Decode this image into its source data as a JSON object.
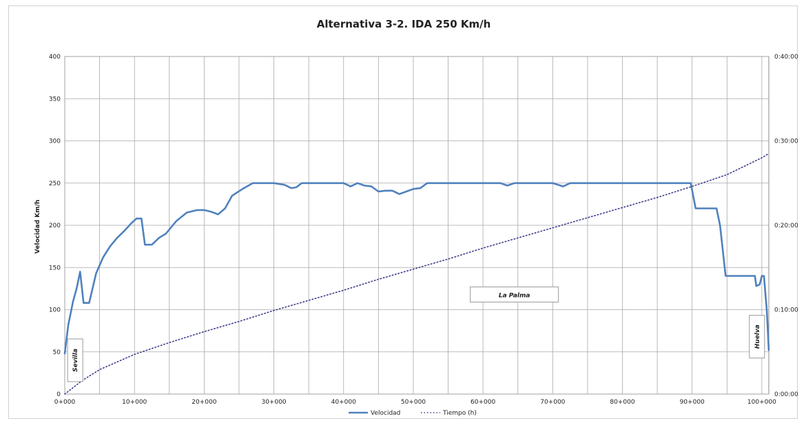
{
  "chart_data": {
    "type": "line",
    "title": "Alternativa 3-2. IDA 250 Km/h",
    "ylabel": "Velocidad Km/h",
    "xlabel": "",
    "xlim": [
      0,
      101000
    ],
    "ylim": [
      0,
      400
    ],
    "y2lim_minutes": [
      0,
      40
    ],
    "grid": true,
    "legend_position": "bottom",
    "x_ticks": [
      {
        "value": 0,
        "label": "0+000"
      },
      {
        "value": 10000,
        "label": "10+000"
      },
      {
        "value": 20000,
        "label": "20+000"
      },
      {
        "value": 30000,
        "label": "30+000"
      },
      {
        "value": 40000,
        "label": "40+000"
      },
      {
        "value": 50000,
        "label": "50+000"
      },
      {
        "value": 60000,
        "label": "60+000"
      },
      {
        "value": 70000,
        "label": "70+000"
      },
      {
        "value": 80000,
        "label": "80+000"
      },
      {
        "value": 90000,
        "label": "90+000"
      },
      {
        "value": 100000,
        "label": "100+000"
      }
    ],
    "y_ticks": [
      {
        "value": 0,
        "label": "0"
      },
      {
        "value": 50,
        "label": "50"
      },
      {
        "value": 100,
        "label": "100"
      },
      {
        "value": 150,
        "label": "150"
      },
      {
        "value": 200,
        "label": "200"
      },
      {
        "value": 250,
        "label": "250"
      },
      {
        "value": 300,
        "label": "300"
      },
      {
        "value": 350,
        "label": "350"
      },
      {
        "value": 400,
        "label": "400"
      }
    ],
    "y2_ticks": [
      {
        "value": 0,
        "label": "0:00:00"
      },
      {
        "value": 10,
        "label": "0:10:00"
      },
      {
        "value": 20,
        "label": "0:20:00"
      },
      {
        "value": 30,
        "label": "0:30:00"
      },
      {
        "value": 40,
        "label": "0:40:00"
      }
    ],
    "series": [
      {
        "name": "Velocidad",
        "axis": "left",
        "color": "#4f81bd",
        "style": "solid",
        "x": [
          0,
          500,
          1200,
          1700,
          2200,
          2700,
          3500,
          4500,
          5500,
          6500,
          7500,
          8500,
          9500,
          10300,
          11000,
          11500,
          12500,
          13500,
          14500,
          16000,
          17500,
          19000,
          20000,
          21000,
          22000,
          23000,
          24000,
          25500,
          27000,
          28000,
          30000,
          31500,
          32500,
          33200,
          34000,
          36000,
          38000,
          40000,
          41000,
          42000,
          43000,
          44000,
          45000,
          46000,
          47000,
          48000,
          49000,
          50000,
          51000,
          52000,
          53000,
          55000,
          60000,
          62500,
          63500,
          64500,
          67000,
          70000,
          71500,
          72500,
          73500,
          75000,
          80000,
          85000,
          89800,
          90500,
          92000,
          93500,
          94000,
          94800,
          96000,
          98000,
          99000,
          99200,
          99700,
          100000,
          100300,
          100700,
          101000
        ],
        "values": [
          48,
          82,
          110,
          125,
          145,
          108,
          108,
          143,
          162,
          175,
          185,
          193,
          202,
          208,
          208,
          177,
          177,
          185,
          190,
          205,
          215,
          218,
          218,
          216,
          213,
          220,
          235,
          243,
          250,
          250,
          250,
          248,
          244,
          245,
          250,
          250,
          250,
          250,
          246,
          250,
          247,
          246,
          240,
          241,
          241,
          237,
          240,
          243,
          244,
          250,
          250,
          250,
          250,
          250,
          247,
          250,
          250,
          250,
          246,
          250,
          250,
          250,
          250,
          250,
          250,
          220,
          220,
          220,
          200,
          140,
          140,
          140,
          140,
          128,
          130,
          140,
          140,
          100,
          52
        ]
      },
      {
        "name": "Tiempo (h)",
        "axis": "right",
        "color": "#3c3c8c",
        "style": "dotted",
        "x": [
          0,
          2500,
          5000,
          10000,
          15000,
          20000,
          25000,
          30000,
          35000,
          40000,
          45000,
          50000,
          55000,
          60000,
          65000,
          70000,
          75000,
          80000,
          85000,
          90000,
          95000,
          100000,
          101000
        ],
        "values": [
          0,
          1.6,
          2.9,
          4.7,
          6.1,
          7.4,
          8.6,
          9.9,
          11.1,
          12.3,
          13.6,
          14.8,
          16.0,
          17.3,
          18.5,
          19.7,
          20.9,
          22.1,
          23.3,
          24.6,
          26.0,
          28.0,
          28.5
        ]
      }
    ],
    "annotations": [
      {
        "text": "Sevilla",
        "x": 1500,
        "y": 40,
        "vertical": true
      },
      {
        "text": "La Palma",
        "x": 64500,
        "y": 118,
        "vertical": false
      },
      {
        "text": "Huelva",
        "x": 99300,
        "y": 68,
        "vertical": true
      }
    ]
  }
}
